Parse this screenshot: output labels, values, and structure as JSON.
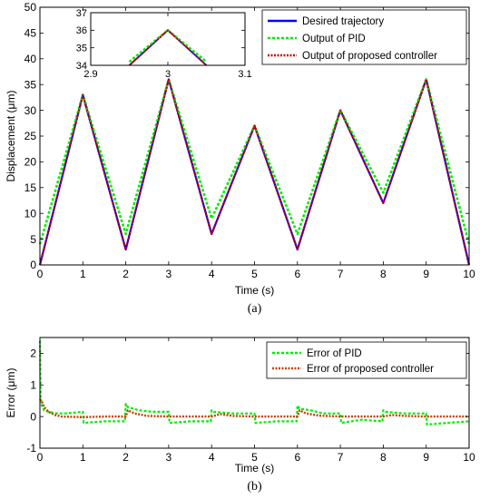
{
  "chart_data": [
    {
      "id": "a",
      "type": "line",
      "caption": "(a)",
      "xlabel": "Time (s)",
      "ylabel": "Displacement (μm)",
      "xlim": [
        0,
        10
      ],
      "ylim": [
        0,
        50
      ],
      "xticks": [
        0,
        1,
        2,
        3,
        4,
        5,
        6,
        7,
        8,
        9,
        10
      ],
      "yticks": [
        0,
        5,
        10,
        15,
        20,
        25,
        30,
        35,
        40,
        45,
        50
      ],
      "legend_position": "top-right",
      "series": [
        {
          "name": "Desired trajectory",
          "color": "#0000ff",
          "style": "solid",
          "x": [
            0,
            1,
            2,
            3,
            4,
            5,
            6,
            7,
            8,
            9,
            10
          ],
          "y": [
            0,
            33,
            3,
            36,
            6,
            27,
            3,
            30,
            12,
            36,
            0
          ]
        },
        {
          "name": "Output of PID",
          "color": "#00ee00",
          "style": "dashed",
          "x": [
            0,
            1,
            2,
            3,
            4,
            5,
            6,
            7,
            8,
            9,
            10
          ],
          "y": [
            4,
            33,
            6,
            36,
            9,
            27,
            6,
            30,
            14,
            36,
            4
          ]
        },
        {
          "name": "Output of proposed controller",
          "color": "#c00000",
          "style": "dotted",
          "x": [
            0,
            1,
            2,
            3,
            4,
            5,
            6,
            7,
            8,
            9,
            10
          ],
          "y": [
            0,
            33,
            3,
            36,
            6,
            27,
            3,
            30,
            12,
            36,
            0
          ]
        }
      ],
      "inset": {
        "xlim": [
          2.9,
          3.1
        ],
        "ylim": [
          34,
          37
        ],
        "xticks": [
          2.9,
          3,
          3.1
        ],
        "yticks": [
          34,
          35,
          36,
          37
        ],
        "series": [
          {
            "color": "#0000ff",
            "x": [
              2.95,
              3,
              3.05
            ],
            "y": [
              34,
              36,
              34
            ]
          },
          {
            "color": "#00ee00",
            "x": [
              2.95,
              3,
              3.05
            ],
            "y": [
              34.2,
              36,
              34.2
            ]
          },
          {
            "color": "#c00000",
            "x": [
              2.95,
              3,
              3.05
            ],
            "y": [
              34,
              36,
              34
            ]
          }
        ]
      }
    },
    {
      "id": "b",
      "type": "line",
      "caption": "(b)",
      "xlabel": "Time (s)",
      "ylabel": "Error (μm)",
      "xlim": [
        0,
        10
      ],
      "ylim": [
        -1,
        2.5
      ],
      "xticks": [
        0,
        1,
        2,
        3,
        4,
        5,
        6,
        7,
        8,
        9,
        10
      ],
      "yticks": [
        -1,
        0,
        1,
        2
      ],
      "legend_position": "top-right",
      "series": [
        {
          "name": "Error of PID",
          "color": "#00ee00",
          "style": "dashed",
          "x": [
            0,
            0.02,
            0.05,
            0.1,
            0.2,
            0.4,
            0.6,
            1.0,
            1.02,
            1.5,
            1.98,
            2.0,
            2.05,
            2.3,
            2.6,
            3.0,
            3.02,
            3.5,
            3.98,
            4.0,
            4.05,
            4.5,
            4.98,
            5.0,
            5.02,
            5.5,
            5.98,
            6.0,
            6.05,
            6.3,
            6.6,
            7.0,
            7.02,
            7.5,
            7.98,
            8.0,
            8.05,
            8.5,
            8.98,
            9.0,
            9.02,
            9.5,
            10.0
          ],
          "y": [
            2.4,
            0.6,
            0.3,
            0.2,
            0.15,
            0.1,
            0.1,
            0.15,
            -0.2,
            -0.15,
            -0.15,
            0.4,
            0.3,
            0.2,
            0.15,
            0.15,
            -0.2,
            -0.15,
            -0.15,
            0.2,
            0.15,
            0.1,
            0.1,
            0.1,
            -0.2,
            -0.15,
            -0.15,
            0.35,
            0.25,
            0.2,
            0.1,
            0.1,
            -0.2,
            -0.1,
            -0.15,
            0.2,
            0.15,
            0.1,
            0.1,
            0.1,
            -0.25,
            -0.2,
            -0.15
          ]
        },
        {
          "name": "Error of proposed controller",
          "color": "#c04000",
          "style": "dotted",
          "x": [
            0,
            0.05,
            0.1,
            0.2,
            0.35,
            0.5,
            1.0,
            1.5,
            2.0,
            2.05,
            2.2,
            2.5,
            3.0,
            3.5,
            4.0,
            4.2,
            4.5,
            5.0,
            5.5,
            6.0,
            6.05,
            6.2,
            6.5,
            7.0,
            7.5,
            8.0,
            8.2,
            8.5,
            9.0,
            9.5,
            10.0
          ],
          "y": [
            0.55,
            0.45,
            0.3,
            0.15,
            0.05,
            0.0,
            -0.02,
            0.0,
            0.0,
            0.2,
            0.1,
            0.02,
            0.0,
            0.0,
            0.0,
            0.08,
            0.02,
            0.0,
            0.0,
            0.0,
            0.2,
            0.1,
            0.03,
            0.0,
            0.0,
            0.0,
            0.05,
            0.02,
            0.0,
            0.0,
            0.0
          ]
        }
      ]
    }
  ]
}
